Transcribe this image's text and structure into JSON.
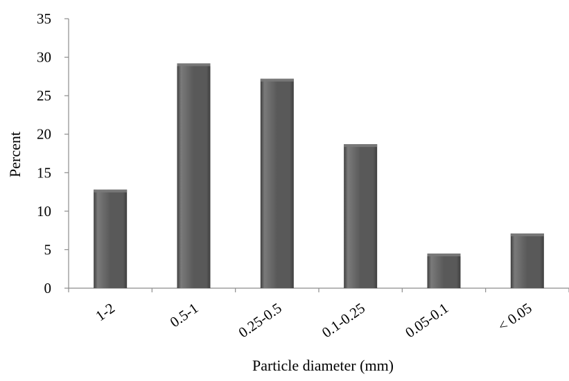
{
  "chart_data": {
    "type": "bar",
    "title": "",
    "xlabel": "Particle diameter (mm)",
    "ylabel": "Percent",
    "categories": [
      "1-2",
      "0.5-1",
      "0.25-0.5",
      "0.1-0.25",
      "0.05-0.1",
      "< 0.05"
    ],
    "values": [
      12.8,
      29.2,
      27.2,
      18.7,
      4.5,
      7.1
    ],
    "ylim": [
      0,
      35
    ],
    "yticks": [
      "0",
      "5",
      "10",
      "15",
      "20",
      "25",
      "30",
      "35"
    ],
    "grid": false,
    "legend": "none",
    "bar_color": "#595959",
    "bar_highlight": "#7a7a7a",
    "bar_shadow": "#3f3f3f"
  }
}
